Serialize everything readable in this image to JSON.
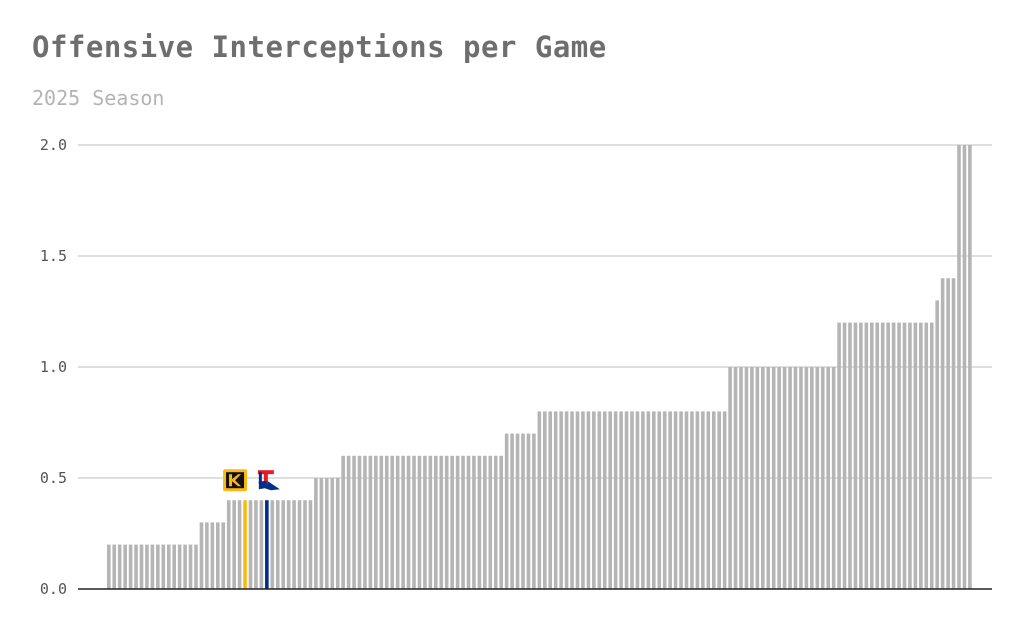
{
  "title": "Offensive Interceptions per Game",
  "subtitle": "2025 Season",
  "colors": {
    "bar": "#b5b5b5",
    "grid": "#cccccc",
    "axis": "#222222",
    "highlight_gold": "#fdb913",
    "highlight_blue": "#002f8b",
    "ks_logo_black": "#111111",
    "lt_logo_red": "#e31b23"
  },
  "logos": [
    {
      "name": "kennesaw-state-logo-icon",
      "text": "KS"
    },
    {
      "name": "louisiana-tech-logo-icon",
      "text": "LT"
    }
  ],
  "chart_data": {
    "type": "bar",
    "ylim": [
      0,
      2.0
    ],
    "yticks": [
      "0.0",
      "0.5",
      "1.0",
      "1.5",
      "2.0"
    ],
    "grid": true,
    "highlighted": [
      {
        "index": 25,
        "value": 0.4,
        "color": "#fdb913",
        "logo": "kennesaw-state-logo-icon"
      },
      {
        "index": 29,
        "value": 0.4,
        "color": "#002f8b",
        "logo": "louisiana-tech-logo-icon"
      }
    ],
    "values": [
      0.2,
      0.2,
      0.2,
      0.2,
      0.2,
      0.2,
      0.2,
      0.2,
      0.2,
      0.2,
      0.2,
      0.2,
      0.2,
      0.2,
      0.2,
      0.2,
      0.2,
      0.3,
      0.3,
      0.3,
      0.3,
      0.3,
      0.4,
      0.4,
      0.4,
      0.4,
      0.4,
      0.4,
      0.4,
      0.4,
      0.4,
      0.4,
      0.4,
      0.4,
      0.4,
      0.4,
      0.4,
      0.4,
      0.5,
      0.5,
      0.5,
      0.5,
      0.5,
      0.6,
      0.6,
      0.6,
      0.6,
      0.6,
      0.6,
      0.6,
      0.6,
      0.6,
      0.6,
      0.6,
      0.6,
      0.6,
      0.6,
      0.6,
      0.6,
      0.6,
      0.6,
      0.6,
      0.6,
      0.6,
      0.6,
      0.6,
      0.6,
      0.6,
      0.6,
      0.6,
      0.6,
      0.6,
      0.6,
      0.7,
      0.7,
      0.7,
      0.7,
      0.7,
      0.7,
      0.8,
      0.8,
      0.8,
      0.8,
      0.8,
      0.8,
      0.8,
      0.8,
      0.8,
      0.8,
      0.8,
      0.8,
      0.8,
      0.8,
      0.8,
      0.8,
      0.8,
      0.8,
      0.8,
      0.8,
      0.8,
      0.8,
      0.8,
      0.8,
      0.8,
      0.8,
      0.8,
      0.8,
      0.8,
      0.8,
      0.8,
      0.8,
      0.8,
      0.8,
      0.8,
      1.0,
      1.0,
      1.0,
      1.0,
      1.0,
      1.0,
      1.0,
      1.0,
      1.0,
      1.0,
      1.0,
      1.0,
      1.0,
      1.0,
      1.0,
      1.0,
      1.0,
      1.0,
      1.0,
      1.0,
      1.2,
      1.2,
      1.2,
      1.2,
      1.2,
      1.2,
      1.2,
      1.2,
      1.2,
      1.2,
      1.2,
      1.2,
      1.2,
      1.2,
      1.2,
      1.2,
      1.2,
      1.2,
      1.3,
      1.4,
      1.4,
      1.4,
      2.0,
      2.0,
      2.0
    ]
  }
}
